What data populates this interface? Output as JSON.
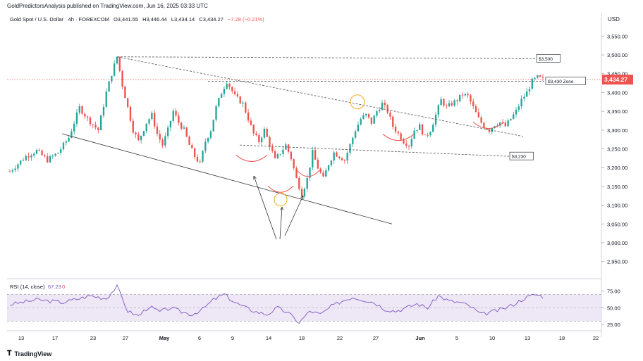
{
  "header": {
    "credit": "GoldPredictorsAnalysis published on TradingView.com, Jun 16, 2025 03:33 UTC",
    "symbol": "Gold Spot / U.S. Dollar · 4h · FOREXCOM",
    "open": "O3,441.55",
    "high": "H3,446.44",
    "low": "L3,434.14",
    "close": "C3,434.27",
    "change": "−7.28 (−0.21%)",
    "currency": "USD"
  },
  "footer": {
    "brand": "TradingView"
  },
  "colors": {
    "up": "#26a69a",
    "down": "#ef5350",
    "price_line": "#ef5350",
    "rsi_line": "#7e57c2",
    "rsi_band": "#ede7f6",
    "annotation": "#ef5350",
    "circle": "#f5a623"
  },
  "chart_data": [
    {
      "type": "candlestick",
      "ylabel": "USD",
      "ylim": [
        2910,
        3590
      ],
      "yticks": [
        2950,
        3000,
        3050,
        3100,
        3150,
        3200,
        3250,
        3300,
        3350,
        3400,
        3450,
        3500,
        3550
      ],
      "ytick_labels": [
        "2,950.00",
        "3,000.00",
        "3,050.00",
        "3,100.00",
        "3,150.00",
        "3,200.00",
        "3,250.00",
        "3,300.00",
        "3,350.00",
        "3,400.00",
        "3,450.00",
        "3,500.00",
        "3,550.00"
      ],
      "xticks": [
        "13",
        "17",
        "23",
        "27",
        "May",
        "6",
        "9",
        "14",
        "18",
        "22",
        "27",
        "Jun",
        "5",
        "10",
        "13",
        "18",
        "22"
      ],
      "last_price": "3,434.27",
      "close_path": [
        [
          0,
          3190
        ],
        [
          6,
          3230
        ],
        [
          10,
          3245
        ],
        [
          14,
          3220
        ],
        [
          18,
          3240
        ],
        [
          22,
          3280
        ],
        [
          26,
          3360
        ],
        [
          29,
          3330
        ],
        [
          33,
          3300
        ],
        [
          36,
          3400
        ],
        [
          38,
          3450
        ],
        [
          40,
          3495
        ],
        [
          42,
          3420
        ],
        [
          44,
          3360
        ],
        [
          46,
          3300
        ],
        [
          48,
          3270
        ],
        [
          51,
          3320
        ],
        [
          53,
          3340
        ],
        [
          55,
          3290
        ],
        [
          57,
          3260
        ],
        [
          59,
          3300
        ],
        [
          61,
          3350
        ],
        [
          63,
          3320
        ],
        [
          65,
          3300
        ],
        [
          67,
          3260
        ],
        [
          69,
          3230
        ],
        [
          71,
          3210
        ],
        [
          73,
          3270
        ],
        [
          75,
          3300
        ],
        [
          77,
          3360
        ],
        [
          79,
          3400
        ],
        [
          81,
          3430
        ],
        [
          84,
          3390
        ],
        [
          87,
          3370
        ],
        [
          89,
          3330
        ],
        [
          91,
          3290
        ],
        [
          93,
          3270
        ],
        [
          95,
          3300
        ],
        [
          97,
          3260
        ],
        [
          99,
          3220
        ],
        [
          101,
          3240
        ],
        [
          103,
          3260
        ],
        [
          105,
          3225
        ],
        [
          107,
          3170
        ],
        [
          109,
          3130
        ],
        [
          111,
          3170
        ],
        [
          113,
          3240
        ],
        [
          115,
          3200
        ],
        [
          117,
          3170
        ],
        [
          119,
          3210
        ],
        [
          121,
          3240
        ],
        [
          123,
          3230
        ],
        [
          125,
          3220
        ],
        [
          127,
          3260
        ],
        [
          129,
          3300
        ],
        [
          131,
          3330
        ],
        [
          133,
          3340
        ],
        [
          135,
          3320
        ],
        [
          137,
          3350
        ],
        [
          139,
          3370
        ],
        [
          141,
          3350
        ],
        [
          143,
          3310
        ],
        [
          145,
          3290
        ],
        [
          147,
          3270
        ],
        [
          149,
          3260
        ],
        [
          151,
          3300
        ],
        [
          153,
          3310
        ],
        [
          155,
          3280
        ],
        [
          157,
          3300
        ],
        [
          159,
          3340
        ],
        [
          161,
          3380
        ],
        [
          163,
          3360
        ],
        [
          165,
          3370
        ],
        [
          167,
          3380
        ],
        [
          169,
          3395
        ],
        [
          171,
          3390
        ],
        [
          173,
          3360
        ],
        [
          175,
          3330
        ],
        [
          177,
          3310
        ],
        [
          179,
          3300
        ],
        [
          181,
          3315
        ],
        [
          183,
          3320
        ],
        [
          185,
          3310
        ],
        [
          187,
          3330
        ],
        [
          189,
          3350
        ],
        [
          191,
          3380
        ],
        [
          193,
          3400
        ],
        [
          195,
          3430
        ],
        [
          197,
          3440
        ],
        [
          199,
          3434.27
        ]
      ],
      "annotations": {
        "levels": [
          {
            "label": "$3,500",
            "value": 3490
          },
          {
            "label": "$3,430 Zone",
            "value": 3430
          },
          {
            "label": "$3,230",
            "value": 3230
          }
        ]
      }
    },
    {
      "type": "line",
      "title": "RSI (14, close)",
      "value_label": "67.23",
      "value_label_2": "0",
      "ylim": [
        20,
        85
      ],
      "yticks": [
        25,
        50,
        75
      ],
      "ytick_labels": [
        "25.00",
        "50.00",
        "75.00"
      ],
      "band": [
        30,
        70
      ],
      "rsi_path": [
        [
          0,
          55
        ],
        [
          10,
          62
        ],
        [
          20,
          58
        ],
        [
          30,
          68
        ],
        [
          36,
          64
        ],
        [
          40,
          82
        ],
        [
          44,
          45
        ],
        [
          48,
          38
        ],
        [
          52,
          52
        ],
        [
          56,
          44
        ],
        [
          60,
          50
        ],
        [
          64,
          44
        ],
        [
          68,
          40
        ],
        [
          72,
          48
        ],
        [
          76,
          62
        ],
        [
          80,
          70
        ],
        [
          84,
          58
        ],
        [
          88,
          50
        ],
        [
          92,
          44
        ],
        [
          96,
          40
        ],
        [
          100,
          50
        ],
        [
          104,
          42
        ],
        [
          108,
          28
        ],
        [
          112,
          45
        ],
        [
          116,
          40
        ],
        [
          120,
          52
        ],
        [
          124,
          60
        ],
        [
          128,
          66
        ],
        [
          132,
          62
        ],
        [
          136,
          58
        ],
        [
          140,
          48
        ],
        [
          144,
          45
        ],
        [
          148,
          50
        ],
        [
          152,
          56
        ],
        [
          156,
          50
        ],
        [
          160,
          68
        ],
        [
          164,
          60
        ],
        [
          168,
          58
        ],
        [
          172,
          52
        ],
        [
          176,
          40
        ],
        [
          180,
          44
        ],
        [
          184,
          48
        ],
        [
          188,
          55
        ],
        [
          192,
          64
        ],
        [
          196,
          70
        ],
        [
          199,
          67
        ]
      ]
    }
  ]
}
